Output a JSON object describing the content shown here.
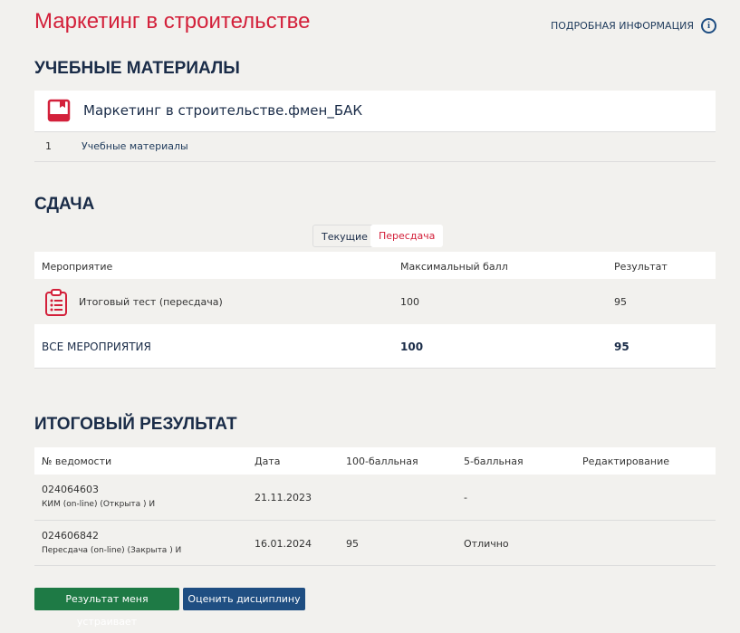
{
  "title": "Маркетинг в строительстве",
  "info_link": "ПОДРОБНАЯ ИНФОРМАЦИЯ",
  "materials": {
    "heading": "УЧЕБНЫЕ МАТЕРИАЛЫ",
    "course": "Маркетинг в строительстве.фмен_БАК",
    "items": [
      {
        "num": "1",
        "label": "Учебные материалы"
      }
    ]
  },
  "submission": {
    "heading": "СДАЧА",
    "tabs": [
      "Текущие",
      "Пересдача"
    ],
    "active_tab": "Пересдача",
    "columns": [
      "Мероприятие",
      "Максимальный балл",
      "Результат"
    ],
    "rows": [
      {
        "event": "Итоговый тест (пересдача)",
        "max": "100",
        "result": "95"
      }
    ],
    "total": {
      "label": "ВСЕ МЕРОПРИЯТИЯ",
      "max": "100",
      "result": "95"
    }
  },
  "final": {
    "heading": "ИТОГОВЫЙ РЕЗУЛЬТАТ",
    "columns": [
      "№ ведомости",
      "Дата",
      "100-балльная",
      "5-балльная",
      "Редактирование"
    ],
    "rows": [
      {
        "num": "024064603",
        "desc": "КИМ (on-line) (Открыта ) И",
        "date": "21.11.2023",
        "score100": "",
        "score5": "-"
      },
      {
        "num": "024606842",
        "desc": "Пересдача (on-line) (Закрыта ) И",
        "date": "16.01.2024",
        "score100": "95",
        "score5": "Отлично"
      }
    ]
  },
  "buttons": {
    "accept": "Результат меня устраивает",
    "rate": "Оценить дисциплину"
  },
  "colors": {
    "accent": "#d3203a",
    "navy": "#1a2c48",
    "green": "#1e7a45",
    "blue": "#1f4e82"
  }
}
